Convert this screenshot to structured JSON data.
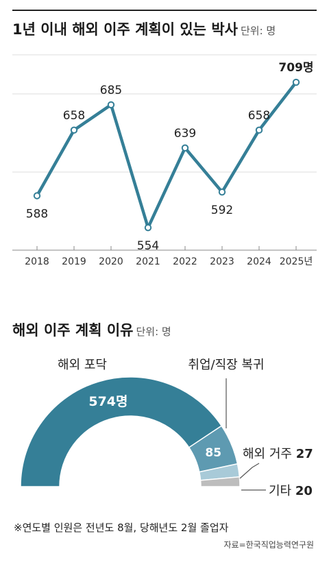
{
  "section1": {
    "title": "1년 이내 해외 이주 계획이 있는 박사",
    "unit": "단위: 명"
  },
  "section2": {
    "title": "해외 이주 계획 이유",
    "unit": "단위: 명"
  },
  "chart_data": [
    {
      "type": "line",
      "title": "1년 이내 해외 이주 계획이 있는 박사",
      "x": [
        "2018",
        "2019",
        "2020",
        "2021",
        "2022",
        "2023",
        "2024",
        "2025년"
      ],
      "values": [
        588,
        658,
        685,
        554,
        639,
        592,
        658,
        709
      ],
      "value_labels": [
        "588",
        "658",
        "685",
        "554",
        "639",
        "592",
        "658",
        "709명"
      ],
      "ylim": [
        530,
        720
      ],
      "grid": true,
      "color": "#357f97"
    },
    {
      "type": "pie",
      "style": "half-donut",
      "title": "해외 이주 계획 이유",
      "slices": [
        {
          "label": "해외 포닥",
          "value": 574,
          "value_label": "574명",
          "color": "#357f97"
        },
        {
          "label": "취업/직장 복귀",
          "value": 85,
          "value_label": "85",
          "color": "#5e9ab1"
        },
        {
          "label": "해외 거주",
          "value": 27,
          "value_label": "27",
          "color": "#a8cad8"
        },
        {
          "label": "기타",
          "value": 20,
          "value_label": "20",
          "color": "#bdbdbd"
        }
      ]
    }
  ],
  "footnote": "※연도별 인원은 전년도 8월, 당해년도 2월 졸업자",
  "source": "자료=한국직업능력연구원"
}
